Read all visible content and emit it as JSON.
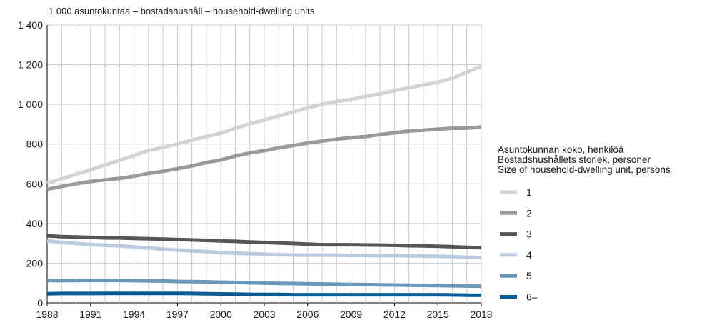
{
  "chart_data": {
    "type": "line",
    "unit_label": "1 000 asuntokuntaa – bostadshushåll – household-dwelling units",
    "x": [
      1988,
      1989,
      1990,
      1991,
      1992,
      1993,
      1994,
      1995,
      1996,
      1997,
      1998,
      1999,
      2000,
      2001,
      2002,
      2003,
      2004,
      2005,
      2006,
      2007,
      2008,
      2009,
      2010,
      2011,
      2012,
      2013,
      2014,
      2015,
      2016,
      2017,
      2018
    ],
    "x_ticks": [
      "1988",
      "1991",
      "1994",
      "1997",
      "2000",
      "2003",
      "2006",
      "2009",
      "2012",
      "2015",
      "2018"
    ],
    "y_ticks": [
      "0",
      "200",
      "400",
      "600",
      "800",
      "1 000",
      "1 200",
      "1 400"
    ],
    "xlim": [
      1988,
      2018
    ],
    "ylim": [
      0,
      1400
    ],
    "grid": true,
    "legend_position": "right",
    "legend_title": [
      "Asuntokunnan koko, henkilöä",
      "Bostadshushållets storlek, personer",
      "Size of household-dwelling unit, persons"
    ],
    "series": [
      {
        "name": "1",
        "color": "#d3d3d3",
        "values": [
          603,
          625,
          648,
          670,
          695,
          718,
          742,
          768,
          783,
          800,
          820,
          838,
          855,
          880,
          902,
          922,
          942,
          963,
          982,
          1000,
          1015,
          1025,
          1040,
          1053,
          1070,
          1084,
          1098,
          1112,
          1132,
          1162,
          1192
        ]
      },
      {
        "name": "2",
        "color": "#999999",
        "values": [
          572,
          587,
          600,
          612,
          620,
          627,
          638,
          652,
          663,
          676,
          690,
          707,
          720,
          740,
          755,
          767,
          781,
          793,
          805,
          815,
          825,
          832,
          838,
          848,
          857,
          866,
          870,
          875,
          880,
          880,
          886
        ]
      },
      {
        "name": "3",
        "color": "#555555",
        "values": [
          338,
          334,
          332,
          330,
          327,
          327,
          325,
          323,
          321,
          319,
          317,
          315,
          312,
          310,
          307,
          304,
          302,
          299,
          296,
          293,
          293,
          293,
          292,
          291,
          290,
          288,
          287,
          285,
          283,
          280,
          278
        ]
      },
      {
        "name": "4",
        "color": "#b9cbdc",
        "values": [
          312,
          305,
          299,
          294,
          290,
          287,
          282,
          276,
          271,
          266,
          262,
          258,
          253,
          250,
          248,
          245,
          243,
          241,
          240,
          240,
          240,
          239,
          239,
          238,
          238,
          237,
          236,
          235,
          233,
          230,
          228
        ]
      },
      {
        "name": "5",
        "color": "#6998b8",
        "values": [
          113,
          112,
          113,
          113,
          113,
          113,
          112,
          111,
          110,
          108,
          107,
          106,
          104,
          103,
          101,
          100,
          98,
          97,
          96,
          95,
          94,
          93,
          92,
          91,
          90,
          89,
          88,
          87,
          86,
          85,
          84
        ]
      },
      {
        "name": "6–",
        "color": "#0a5c94",
        "values": [
          46,
          47,
          47,
          47,
          48,
          48,
          48,
          48,
          48,
          48,
          47,
          46,
          45,
          44,
          43,
          42,
          42,
          41,
          41,
          41,
          41,
          41,
          41,
          41,
          41,
          41,
          41,
          41,
          40,
          39,
          38
        ]
      }
    ]
  }
}
